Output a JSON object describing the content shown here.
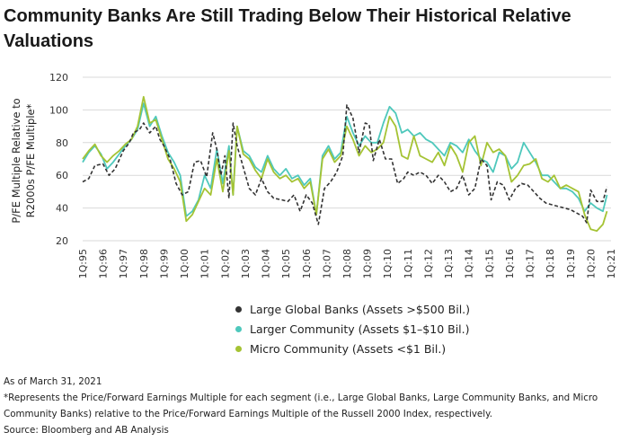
{
  "title": "Community Banks Are Still Trading Below Their Historical Relative Valuations",
  "footer": {
    "date_note": "As of March 31, 2021",
    "footnote": "*Represents the Price/Forward Earnings Multiple for each segment (i.e., Large Global Banks, Large Community Banks, and Micro Community Banks) relative to the Price/Forward Earnings Multiple of the Russell 2000 Index, respectively.",
    "source": "Source: Bloomberg and AB Analysis"
  },
  "chart_data": {
    "type": "line",
    "title": "Community Banks Are Still Trading Below Their Historical Relative Valuations",
    "ylabel": "P/FE Multiple Relative to R2000s P/FE Multiple*",
    "xlabel": "",
    "ylim": [
      20,
      120
    ],
    "yticks": [
      20,
      40,
      60,
      80,
      100,
      120
    ],
    "xlim": [
      0,
      26
    ],
    "x_tick_labels": [
      "1Q:95",
      "1Q:96",
      "1Q:97",
      "1Q:98",
      "1Q:99",
      "1Q:00",
      "1Q:01",
      "1Q:02",
      "1Q:03",
      "1Q:04",
      "1Q:05",
      "1Q:06",
      "1Q:07",
      "1Q:08",
      "1Q:09",
      "1Q:10",
      "1Q:11",
      "1Q:12",
      "1Q:13",
      "1Q:14",
      "1Q:15",
      "1Q:16",
      "1Q:17",
      "1Q:18",
      "1Q:19",
      "1Q:20",
      "1Q:21"
    ],
    "grid": "horizontal",
    "legend_position": "bottom-center",
    "series": [
      {
        "name": "Large Global Banks (Assets >$500  Bil.)",
        "color": "#333333",
        "dash": true,
        "points": [
          [
            0,
            56
          ],
          [
            0.3,
            58
          ],
          [
            0.6,
            66
          ],
          [
            1.0,
            67
          ],
          [
            1.3,
            60
          ],
          [
            1.6,
            64
          ],
          [
            2.0,
            75
          ],
          [
            2.3,
            80
          ],
          [
            2.5,
            86
          ],
          [
            2.8,
            88
          ],
          [
            3.0,
            92
          ],
          [
            3.3,
            86
          ],
          [
            3.6,
            90
          ],
          [
            3.8,
            82
          ],
          [
            4.0,
            78
          ],
          [
            4.3,
            70
          ],
          [
            4.6,
            55
          ],
          [
            4.9,
            48
          ],
          [
            5.2,
            50
          ],
          [
            5.5,
            68
          ],
          [
            5.8,
            69
          ],
          [
            6.1,
            59
          ],
          [
            6.4,
            86
          ],
          [
            6.6,
            76
          ],
          [
            6.8,
            60
          ],
          [
            7.0,
            72
          ],
          [
            7.2,
            46
          ],
          [
            7.4,
            92
          ],
          [
            7.6,
            78
          ],
          [
            7.9,
            65
          ],
          [
            8.2,
            52
          ],
          [
            8.5,
            48
          ],
          [
            8.8,
            58
          ],
          [
            9.1,
            50
          ],
          [
            9.4,
            46
          ],
          [
            9.8,
            45
          ],
          [
            10.1,
            44
          ],
          [
            10.4,
            48
          ],
          [
            10.7,
            38
          ],
          [
            11.0,
            48
          ],
          [
            11.3,
            43
          ],
          [
            11.6,
            30
          ],
          [
            11.9,
            52
          ],
          [
            12.2,
            56
          ],
          [
            12.5,
            62
          ],
          [
            12.8,
            72
          ],
          [
            13.0,
            103
          ],
          [
            13.3,
            95
          ],
          [
            13.6,
            74
          ],
          [
            13.9,
            92
          ],
          [
            14.1,
            91
          ],
          [
            14.3,
            69
          ],
          [
            14.6,
            82
          ],
          [
            14.9,
            70
          ],
          [
            15.2,
            70
          ],
          [
            15.5,
            55
          ],
          [
            15.8,
            58
          ],
          [
            16.0,
            62
          ],
          [
            16.3,
            60
          ],
          [
            16.6,
            62
          ],
          [
            16.9,
            60
          ],
          [
            17.2,
            55
          ],
          [
            17.5,
            60
          ],
          [
            17.8,
            56
          ],
          [
            18.1,
            50
          ],
          [
            18.4,
            52
          ],
          [
            18.7,
            60
          ],
          [
            19.0,
            48
          ],
          [
            19.3,
            52
          ],
          [
            19.6,
            70
          ],
          [
            19.9,
            66
          ],
          [
            20.1,
            45
          ],
          [
            20.4,
            56
          ],
          [
            20.7,
            54
          ],
          [
            21.0,
            45
          ],
          [
            21.3,
            52
          ],
          [
            21.6,
            55
          ],
          [
            21.9,
            54
          ],
          [
            22.2,
            50
          ],
          [
            22.5,
            46
          ],
          [
            22.8,
            43
          ],
          [
            23.1,
            42
          ],
          [
            23.4,
            41
          ],
          [
            23.7,
            40
          ],
          [
            24.0,
            39
          ],
          [
            24.3,
            37
          ],
          [
            24.6,
            35
          ],
          [
            24.8,
            31
          ],
          [
            25.0,
            51
          ],
          [
            25.3,
            44
          ],
          [
            25.6,
            44
          ],
          [
            25.8,
            53
          ]
        ]
      },
      {
        "name": "Larger Community (Assets $1–$10 Bil.)",
        "color": "#4ec8bc",
        "dash": false,
        "points": [
          [
            0,
            68
          ],
          [
            0.3,
            74
          ],
          [
            0.6,
            78
          ],
          [
            0.9,
            73
          ],
          [
            1.2,
            64
          ],
          [
            1.5,
            68
          ],
          [
            1.8,
            73
          ],
          [
            2.1,
            78
          ],
          [
            2.4,
            82
          ],
          [
            2.7,
            88
          ],
          [
            3.0,
            104
          ],
          [
            3.3,
            90
          ],
          [
            3.6,
            96
          ],
          [
            3.9,
            84
          ],
          [
            4.2,
            74
          ],
          [
            4.5,
            68
          ],
          [
            4.8,
            60
          ],
          [
            5.1,
            35
          ],
          [
            5.4,
            38
          ],
          [
            5.7,
            45
          ],
          [
            6.0,
            60
          ],
          [
            6.3,
            52
          ],
          [
            6.6,
            76
          ],
          [
            6.9,
            55
          ],
          [
            7.2,
            78
          ],
          [
            7.4,
            48
          ],
          [
            7.6,
            90
          ],
          [
            7.9,
            75
          ],
          [
            8.2,
            72
          ],
          [
            8.5,
            65
          ],
          [
            8.8,
            62
          ],
          [
            9.1,
            72
          ],
          [
            9.4,
            64
          ],
          [
            9.7,
            60
          ],
          [
            10.0,
            64
          ],
          [
            10.3,
            58
          ],
          [
            10.6,
            60
          ],
          [
            10.9,
            54
          ],
          [
            11.2,
            58
          ],
          [
            11.5,
            36
          ],
          [
            11.8,
            72
          ],
          [
            12.1,
            78
          ],
          [
            12.4,
            70
          ],
          [
            12.7,
            74
          ],
          [
            13.0,
            96
          ],
          [
            13.3,
            86
          ],
          [
            13.6,
            78
          ],
          [
            13.9,
            84
          ],
          [
            14.2,
            80
          ],
          [
            14.5,
            80
          ],
          [
            14.8,
            92
          ],
          [
            15.1,
            102
          ],
          [
            15.4,
            98
          ],
          [
            15.7,
            86
          ],
          [
            16.0,
            88
          ],
          [
            16.3,
            84
          ],
          [
            16.6,
            86
          ],
          [
            16.9,
            82
          ],
          [
            17.2,
            80
          ],
          [
            17.5,
            76
          ],
          [
            17.8,
            72
          ],
          [
            18.1,
            80
          ],
          [
            18.4,
            78
          ],
          [
            18.7,
            74
          ],
          [
            19.0,
            82
          ],
          [
            19.3,
            75
          ],
          [
            19.6,
            70
          ],
          [
            19.9,
            68
          ],
          [
            20.2,
            62
          ],
          [
            20.5,
            74
          ],
          [
            20.8,
            72
          ],
          [
            21.1,
            64
          ],
          [
            21.4,
            68
          ],
          [
            21.7,
            80
          ],
          [
            22.0,
            74
          ],
          [
            22.3,
            68
          ],
          [
            22.6,
            60
          ],
          [
            22.9,
            60
          ],
          [
            23.2,
            56
          ],
          [
            23.5,
            52
          ],
          [
            23.8,
            52
          ],
          [
            24.1,
            50
          ],
          [
            24.4,
            46
          ],
          [
            24.7,
            38
          ],
          [
            25.0,
            43
          ],
          [
            25.3,
            40
          ],
          [
            25.6,
            38
          ],
          [
            25.8,
            48
          ]
        ]
      },
      {
        "name": "Micro Community (Assets <$1  Bil.)",
        "color": "#a5c334",
        "dash": false,
        "points": [
          [
            0,
            70
          ],
          [
            0.3,
            75
          ],
          [
            0.6,
            79
          ],
          [
            0.9,
            72
          ],
          [
            1.2,
            68
          ],
          [
            1.5,
            72
          ],
          [
            1.8,
            75
          ],
          [
            2.1,
            79
          ],
          [
            2.4,
            82
          ],
          [
            2.7,
            90
          ],
          [
            3.0,
            108
          ],
          [
            3.3,
            92
          ],
          [
            3.6,
            94
          ],
          [
            3.9,
            82
          ],
          [
            4.2,
            70
          ],
          [
            4.5,
            64
          ],
          [
            4.8,
            56
          ],
          [
            5.1,
            32
          ],
          [
            5.4,
            36
          ],
          [
            5.7,
            44
          ],
          [
            6.0,
            52
          ],
          [
            6.3,
            48
          ],
          [
            6.6,
            70
          ],
          [
            6.9,
            50
          ],
          [
            7.2,
            75
          ],
          [
            7.4,
            48
          ],
          [
            7.6,
            90
          ],
          [
            7.9,
            73
          ],
          [
            8.2,
            70
          ],
          [
            8.5,
            63
          ],
          [
            8.8,
            58
          ],
          [
            9.1,
            70
          ],
          [
            9.4,
            62
          ],
          [
            9.7,
            58
          ],
          [
            10.0,
            60
          ],
          [
            10.3,
            56
          ],
          [
            10.6,
            58
          ],
          [
            10.9,
            52
          ],
          [
            11.2,
            56
          ],
          [
            11.5,
            36
          ],
          [
            11.8,
            70
          ],
          [
            12.1,
            76
          ],
          [
            12.4,
            68
          ],
          [
            12.7,
            72
          ],
          [
            13.0,
            90
          ],
          [
            13.3,
            82
          ],
          [
            13.6,
            72
          ],
          [
            13.9,
            78
          ],
          [
            14.2,
            74
          ],
          [
            14.5,
            76
          ],
          [
            14.8,
            80
          ],
          [
            15.1,
            96
          ],
          [
            15.4,
            90
          ],
          [
            15.7,
            72
          ],
          [
            16.0,
            70
          ],
          [
            16.3,
            84
          ],
          [
            16.6,
            72
          ],
          [
            16.9,
            70
          ],
          [
            17.2,
            68
          ],
          [
            17.5,
            74
          ],
          [
            17.8,
            66
          ],
          [
            18.1,
            78
          ],
          [
            18.4,
            72
          ],
          [
            18.7,
            62
          ],
          [
            19.0,
            80
          ],
          [
            19.3,
            84
          ],
          [
            19.6,
            66
          ],
          [
            19.9,
            80
          ],
          [
            20.2,
            74
          ],
          [
            20.5,
            76
          ],
          [
            20.8,
            72
          ],
          [
            21.1,
            56
          ],
          [
            21.4,
            60
          ],
          [
            21.7,
            66
          ],
          [
            22.0,
            67
          ],
          [
            22.3,
            70
          ],
          [
            22.6,
            58
          ],
          [
            22.9,
            56
          ],
          [
            23.2,
            60
          ],
          [
            23.5,
            52
          ],
          [
            23.8,
            54
          ],
          [
            24.1,
            52
          ],
          [
            24.4,
            50
          ],
          [
            24.7,
            36
          ],
          [
            25.0,
            27
          ],
          [
            25.3,
            26
          ],
          [
            25.6,
            30
          ],
          [
            25.8,
            38
          ]
        ]
      }
    ]
  }
}
